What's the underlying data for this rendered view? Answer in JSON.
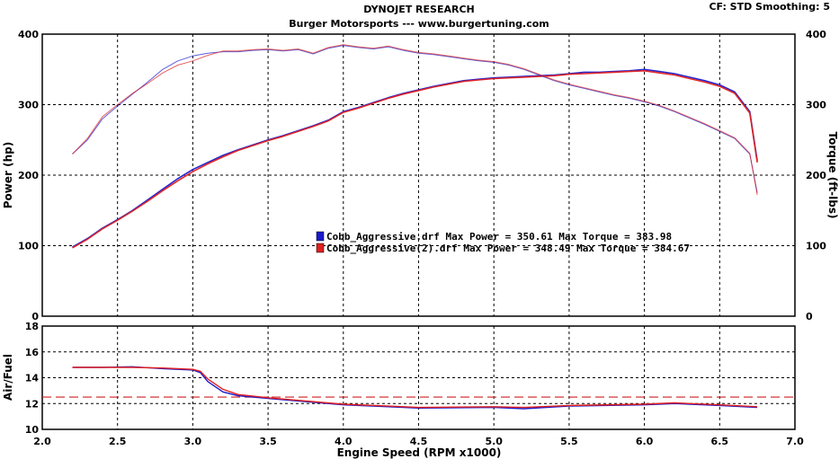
{
  "header": {
    "title": "DYNOJET RESEARCH",
    "subtitle": "Burger Motorsports --- www.burgertuning.com",
    "settings": "CF: STD  Smoothing: 5"
  },
  "chart_data": [
    {
      "type": "line",
      "name": "power-torque",
      "xlim": [
        2.0,
        7.0
      ],
      "x_ticks": [
        "2.0",
        "2.5",
        "3.0",
        "3.5",
        "4.0",
        "4.5",
        "5.0",
        "5.5",
        "6.0",
        "6.5",
        "7.0"
      ],
      "ylabel": "Power (hp)",
      "ylim": [
        0,
        400
      ],
      "y_ticks": [
        "0",
        "100",
        "200",
        "300",
        "400"
      ],
      "y2label": "Torque (ft-lbs)",
      "y2lim": [
        0,
        400
      ],
      "y2_ticks": [
        "0",
        "100",
        "200",
        "300",
        "400"
      ],
      "grid": true,
      "legend": {
        "placement": "center",
        "entries": [
          {
            "text": "Cobb_Aggressive.drf Max Power = 350.61     Max Torque = 383.98",
            "color": "#1a1acc"
          },
          {
            "text": "Cobb_Aggressive(2).drf Max Power = 348.49     Max Torque = 384.67",
            "color": "#e02020"
          }
        ]
      },
      "series": [
        {
          "measure": "power",
          "run": 1,
          "color": "#1a1acc",
          "x": [
            2.2,
            2.3,
            2.4,
            2.5,
            2.6,
            2.7,
            2.8,
            2.9,
            3.0,
            3.1,
            3.2,
            3.3,
            3.4,
            3.5,
            3.6,
            3.7,
            3.8,
            3.9,
            4.0,
            4.1,
            4.2,
            4.3,
            4.4,
            4.5,
            4.6,
            4.7,
            4.8,
            4.9,
            5.0,
            5.1,
            5.2,
            5.3,
            5.4,
            5.5,
            5.6,
            5.7,
            5.8,
            5.9,
            6.0,
            6.1,
            6.2,
            6.3,
            6.4,
            6.5,
            6.6,
            6.7,
            6.75
          ],
          "y": [
            98,
            110,
            125,
            137,
            150,
            165,
            180,
            195,
            208,
            218,
            228,
            236,
            243,
            250,
            256,
            263,
            270,
            278,
            290,
            296,
            303,
            310,
            316,
            321,
            326,
            330,
            334,
            336,
            338,
            339,
            340,
            341,
            342,
            344,
            346,
            346,
            347,
            348,
            350,
            347,
            344,
            339,
            334,
            328,
            318,
            290,
            220
          ]
        },
        {
          "measure": "power",
          "run": 2,
          "color": "#e02020",
          "x": [
            2.2,
            2.3,
            2.4,
            2.5,
            2.6,
            2.7,
            2.8,
            2.9,
            3.0,
            3.1,
            3.2,
            3.3,
            3.4,
            3.5,
            3.6,
            3.7,
            3.8,
            3.9,
            4.0,
            4.1,
            4.2,
            4.3,
            4.4,
            4.5,
            4.6,
            4.7,
            4.8,
            4.9,
            5.0,
            5.1,
            5.2,
            5.3,
            5.4,
            5.5,
            5.6,
            5.7,
            5.8,
            5.9,
            6.0,
            6.1,
            6.2,
            6.3,
            6.4,
            6.5,
            6.6,
            6.7,
            6.75
          ],
          "y": [
            97,
            109,
            124,
            136,
            149,
            163,
            178,
            192,
            205,
            216,
            226,
            235,
            242,
            249,
            255,
            262,
            269,
            277,
            289,
            295,
            302,
            309,
            315,
            320,
            325,
            329,
            333,
            335,
            337,
            338,
            339,
            340,
            341,
            343,
            344,
            345,
            346,
            347,
            348,
            345,
            342,
            337,
            332,
            326,
            316,
            288,
            218
          ]
        },
        {
          "measure": "torque",
          "run": 1,
          "color": "#1a1acc",
          "x": [
            2.2,
            2.3,
            2.4,
            2.5,
            2.6,
            2.7,
            2.8,
            2.9,
            3.0,
            3.1,
            3.2,
            3.3,
            3.4,
            3.5,
            3.6,
            3.7,
            3.8,
            3.9,
            4.0,
            4.1,
            4.2,
            4.3,
            4.4,
            4.5,
            4.6,
            4.7,
            4.8,
            4.9,
            5.0,
            5.1,
            5.2,
            5.3,
            5.4,
            5.5,
            5.6,
            5.7,
            5.8,
            5.9,
            6.0,
            6.1,
            6.2,
            6.3,
            6.4,
            6.5,
            6.6,
            6.7,
            6.75
          ],
          "y": [
            230,
            250,
            280,
            298,
            315,
            332,
            350,
            362,
            369,
            373,
            375,
            375,
            377,
            378,
            376,
            378,
            372,
            380,
            384,
            381,
            379,
            382,
            377,
            373,
            371,
            368,
            365,
            362,
            360,
            356,
            350,
            342,
            334,
            328,
            323,
            318,
            313,
            309,
            304,
            298,
            290,
            281,
            272,
            262,
            252,
            230,
            175
          ]
        },
        {
          "measure": "torque",
          "run": 2,
          "color": "#e02020",
          "x": [
            2.2,
            2.3,
            2.4,
            2.5,
            2.6,
            2.7,
            2.8,
            2.9,
            3.0,
            3.1,
            3.2,
            3.3,
            3.4,
            3.5,
            3.6,
            3.7,
            3.8,
            3.9,
            4.0,
            4.1,
            4.2,
            4.3,
            4.4,
            4.5,
            4.6,
            4.7,
            4.8,
            4.9,
            5.0,
            5.1,
            5.2,
            5.3,
            5.4,
            5.5,
            5.6,
            5.7,
            5.8,
            5.9,
            6.0,
            6.1,
            6.2,
            6.3,
            6.4,
            6.5,
            6.6,
            6.7,
            6.75
          ],
          "y": [
            230,
            252,
            283,
            300,
            316,
            330,
            345,
            356,
            362,
            370,
            376,
            376,
            378,
            379,
            377,
            379,
            373,
            381,
            385,
            382,
            380,
            383,
            378,
            374,
            372,
            369,
            366,
            363,
            361,
            357,
            351,
            343,
            335,
            329,
            324,
            319,
            314,
            310,
            305,
            299,
            291,
            282,
            273,
            263,
            253,
            231,
            172
          ]
        }
      ]
    },
    {
      "type": "line",
      "name": "air-fuel",
      "xlabel": "Engine Speed (RPM x1000)",
      "xlim": [
        2.0,
        7.0
      ],
      "x_ticks": [
        "2.0",
        "2.5",
        "3.0",
        "3.5",
        "4.0",
        "4.5",
        "5.0",
        "5.5",
        "6.0",
        "6.5",
        "7.0"
      ],
      "ylabel": "Air/Fuel",
      "ylim": [
        10,
        18
      ],
      "y_ticks": [
        "10",
        "12",
        "14",
        "16",
        "18"
      ],
      "grid": true,
      "reference_line": {
        "y": 12.5,
        "color": "#cc2020"
      },
      "series": [
        {
          "run": 1,
          "color": "#1a1acc",
          "x": [
            2.2,
            2.4,
            2.6,
            2.8,
            3.0,
            3.05,
            3.1,
            3.2,
            3.3,
            3.5,
            3.7,
            4.0,
            4.3,
            4.5,
            5.0,
            5.2,
            5.5,
            6.0,
            6.2,
            6.5,
            6.75
          ],
          "y": [
            14.8,
            14.8,
            14.85,
            14.7,
            14.6,
            14.4,
            13.7,
            12.9,
            12.6,
            12.4,
            12.2,
            11.9,
            11.75,
            11.65,
            11.7,
            11.6,
            11.8,
            11.9,
            12.0,
            11.85,
            11.7
          ]
        },
        {
          "run": 2,
          "color": "#e02020",
          "x": [
            2.2,
            2.4,
            2.6,
            2.8,
            3.0,
            3.05,
            3.1,
            3.2,
            3.3,
            3.5,
            3.7,
            4.0,
            4.3,
            4.5,
            5.0,
            5.2,
            5.5,
            6.0,
            6.2,
            6.5,
            6.75
          ],
          "y": [
            14.8,
            14.8,
            14.8,
            14.75,
            14.65,
            14.5,
            13.9,
            13.1,
            12.7,
            12.45,
            12.25,
            11.95,
            11.8,
            11.7,
            11.75,
            11.7,
            11.85,
            11.95,
            12.05,
            11.9,
            11.75
          ]
        }
      ]
    }
  ]
}
